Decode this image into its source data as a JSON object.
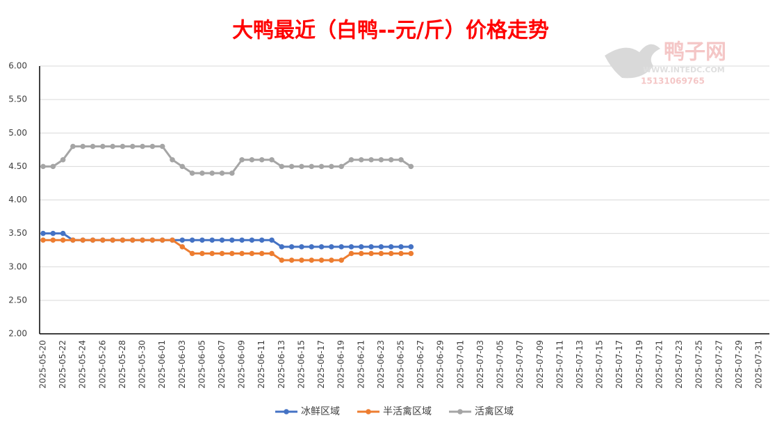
{
  "chart_data": {
    "type": "line",
    "title": "大鸭最近（白鸭--元/斤）价格走势",
    "watermark": {
      "name": "鸭子网",
      "url": "WWW.INTEDC.COM",
      "phone": "15131069765"
    },
    "categories": [
      "2025-05-20",
      null,
      "2025-05-22",
      null,
      "2025-05-24",
      null,
      "2025-05-26",
      null,
      "2025-05-28",
      null,
      "2025-05-30",
      null,
      "2025-06-01",
      null,
      "2025-06-03",
      null,
      "2025-06-05",
      null,
      "2025-06-07",
      null,
      "2025-06-09",
      null,
      "2025-06-11",
      null,
      "2025-06-13",
      null,
      "2025-06-15",
      null,
      "2025-06-17",
      null,
      "2025-06-19",
      null,
      "2025-06-21",
      null,
      "2025-06-23",
      null,
      "2025-06-25",
      null,
      "2025-06-27",
      null,
      "2025-06-29",
      null,
      "2025-07-01",
      null,
      "2025-07-03",
      null,
      "2025-07-05",
      null,
      "2025-07-07",
      null,
      "2025-07-09",
      null,
      "2025-07-11",
      null,
      "2025-07-13",
      null,
      "2025-07-15",
      null,
      "2025-07-17",
      null,
      "2025-07-19",
      null,
      "2025-07-21",
      null,
      "2025-07-23",
      null,
      "2025-07-25",
      null,
      "2025-07-27",
      null,
      "2025-07-29",
      null,
      "2025-07-31"
    ],
    "series": [
      {
        "name": "冰鲜区域",
        "color": "#4472c4",
        "values": [
          3.5,
          3.5,
          3.5,
          3.4,
          3.4,
          3.4,
          3.4,
          3.4,
          3.4,
          3.4,
          3.4,
          3.4,
          3.4,
          3.4,
          3.4,
          3.4,
          3.4,
          3.4,
          3.4,
          3.4,
          3.4,
          3.4,
          3.4,
          3.4,
          3.3,
          3.3,
          3.3,
          3.3,
          3.3,
          3.3,
          3.3,
          3.3,
          3.3,
          3.3,
          3.3,
          3.3,
          3.3,
          3.3,
          null,
          null,
          null,
          null,
          null,
          null,
          null,
          null,
          null,
          null,
          null,
          null,
          null,
          null,
          null,
          null,
          null,
          null,
          null,
          null,
          null,
          null,
          null,
          null,
          null,
          null,
          null,
          null,
          null,
          null,
          null,
          null,
          null,
          null,
          null
        ]
      },
      {
        "name": "半活禽区域",
        "color": "#ed7d31",
        "values": [
          3.4,
          3.4,
          3.4,
          3.4,
          3.4,
          3.4,
          3.4,
          3.4,
          3.4,
          3.4,
          3.4,
          3.4,
          3.4,
          3.4,
          3.3,
          3.2,
          3.2,
          3.2,
          3.2,
          3.2,
          3.2,
          3.2,
          3.2,
          3.2,
          3.1,
          3.1,
          3.1,
          3.1,
          3.1,
          3.1,
          3.1,
          3.2,
          3.2,
          3.2,
          3.2,
          3.2,
          3.2,
          3.2,
          null,
          null,
          null,
          null,
          null,
          null,
          null,
          null,
          null,
          null,
          null,
          null,
          null,
          null,
          null,
          null,
          null,
          null,
          null,
          null,
          null,
          null,
          null,
          null,
          null,
          null,
          null,
          null,
          null,
          null,
          null,
          null,
          null,
          null,
          null
        ]
      },
      {
        "name": "活禽区域",
        "color": "#a5a5a5",
        "values": [
          4.5,
          4.5,
          4.6,
          4.8,
          4.8,
          4.8,
          4.8,
          4.8,
          4.8,
          4.8,
          4.8,
          4.8,
          4.8,
          4.6,
          4.5,
          4.4,
          4.4,
          4.4,
          4.4,
          4.4,
          4.6,
          4.6,
          4.6,
          4.6,
          4.5,
          4.5,
          4.5,
          4.5,
          4.5,
          4.5,
          4.5,
          4.6,
          4.6,
          4.6,
          4.6,
          4.6,
          4.6,
          4.5,
          null,
          null,
          null,
          null,
          null,
          null,
          null,
          null,
          null,
          null,
          null,
          null,
          null,
          null,
          null,
          null,
          null,
          null,
          null,
          null,
          null,
          null,
          null,
          null,
          null,
          null,
          null,
          null,
          null,
          null,
          null,
          null,
          null,
          null,
          null
        ]
      }
    ],
    "ylim": [
      2,
      6
    ],
    "yticks": [
      {
        "value": 2,
        "label": "2.00"
      },
      {
        "value": 2.5,
        "label": "2.50"
      },
      {
        "value": 3,
        "label": "3.00"
      },
      {
        "value": 3.5,
        "label": "3.50"
      },
      {
        "value": 4,
        "label": "4.00"
      },
      {
        "value": 4.5,
        "label": "4.50"
      },
      {
        "value": 5,
        "label": "5.00"
      },
      {
        "value": 5.5,
        "label": "5.50"
      },
      {
        "value": 6,
        "label": "6.00"
      }
    ],
    "grid": true,
    "legend": "bottom"
  }
}
